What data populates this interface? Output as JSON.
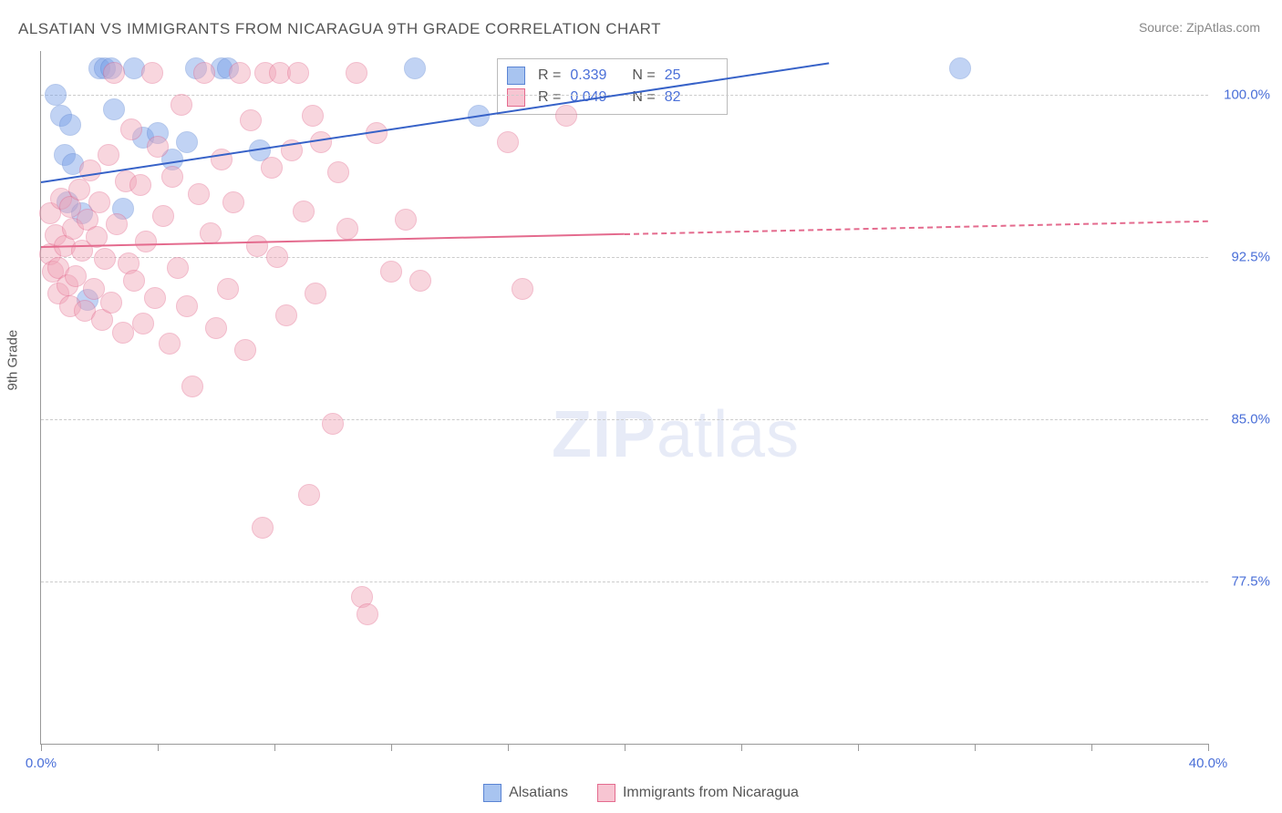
{
  "title": "ALSATIAN VS IMMIGRANTS FROM NICARAGUA 9TH GRADE CORRELATION CHART",
  "source_prefix": "Source: ",
  "source_name": "ZipAtlas.com",
  "yaxis_title": "9th Grade",
  "watermark_bold": "ZIP",
  "watermark_light": "atlas",
  "chart": {
    "type": "scatter",
    "xlim": [
      0,
      40
    ],
    "ylim": [
      70,
      102
    ],
    "xticks": [
      0,
      4,
      8,
      12,
      16,
      20,
      24,
      28,
      32,
      36,
      40
    ],
    "xlabels": {
      "0": "0.0%",
      "40": "40.0%"
    },
    "yticks": [
      77.5,
      85.0,
      92.5,
      100.0
    ],
    "ylabels": [
      "77.5%",
      "85.0%",
      "92.5%",
      "100.0%"
    ],
    "grid_color": "#cccccc",
    "axis_color": "#999999",
    "background": "#ffffff",
    "tick_label_color": "#4a6fd8",
    "title_color": "#555555",
    "marker_radius": 11,
    "marker_opacity": 0.45,
    "series": [
      {
        "name": "Alsatians",
        "color": "#78a0e8",
        "stroke": "#5a84d4",
        "R": "0.339",
        "N": "25",
        "regression": {
          "x1": 0,
          "y1": 96.0,
          "x2": 27,
          "y2": 101.5,
          "color": "#3762c8",
          "width": 2.5,
          "dash_from_x": null
        },
        "points": [
          [
            0.5,
            100.0
          ],
          [
            0.7,
            99.0
          ],
          [
            0.8,
            97.2
          ],
          [
            0.9,
            95.0
          ],
          [
            1.0,
            98.6
          ],
          [
            1.1,
            96.8
          ],
          [
            1.4,
            94.5
          ],
          [
            1.6,
            90.5
          ],
          [
            2.0,
            101.2
          ],
          [
            2.2,
            101.2
          ],
          [
            2.4,
            101.2
          ],
          [
            2.5,
            99.3
          ],
          [
            2.8,
            94.7
          ],
          [
            3.2,
            101.2
          ],
          [
            3.5,
            98.0
          ],
          [
            4.0,
            98.2
          ],
          [
            4.5,
            97.0
          ],
          [
            5.0,
            97.8
          ],
          [
            5.3,
            101.2
          ],
          [
            6.2,
            101.2
          ],
          [
            6.4,
            101.2
          ],
          [
            7.5,
            97.4
          ],
          [
            12.8,
            101.2
          ],
          [
            15.0,
            99.0
          ],
          [
            31.5,
            101.2
          ]
        ]
      },
      {
        "name": "Immigrants from Nicaragua",
        "color": "#f0a5b8",
        "stroke": "#e46b8e",
        "R": "0.049",
        "N": "82",
        "regression": {
          "x1": 0,
          "y1": 93.0,
          "x2": 40,
          "y2": 94.2,
          "color": "#e46b8e",
          "width": 2,
          "dash_from_x": 20
        },
        "points": [
          [
            0.3,
            94.5
          ],
          [
            0.3,
            92.6
          ],
          [
            0.4,
            91.8
          ],
          [
            0.5,
            93.5
          ],
          [
            0.6,
            90.8
          ],
          [
            0.6,
            92.0
          ],
          [
            0.7,
            95.2
          ],
          [
            0.8,
            93.0
          ],
          [
            0.9,
            91.2
          ],
          [
            1.0,
            94.8
          ],
          [
            1.0,
            90.2
          ],
          [
            1.1,
            93.8
          ],
          [
            1.2,
            91.6
          ],
          [
            1.3,
            95.6
          ],
          [
            1.4,
            92.8
          ],
          [
            1.5,
            90.0
          ],
          [
            1.6,
            94.2
          ],
          [
            1.7,
            96.5
          ],
          [
            1.8,
            91.0
          ],
          [
            1.9,
            93.4
          ],
          [
            2.0,
            95.0
          ],
          [
            2.1,
            89.6
          ],
          [
            2.2,
            92.4
          ],
          [
            2.3,
            97.2
          ],
          [
            2.4,
            90.4
          ],
          [
            2.5,
            101.0
          ],
          [
            2.6,
            94.0
          ],
          [
            2.8,
            89.0
          ],
          [
            2.9,
            96.0
          ],
          [
            3.0,
            92.2
          ],
          [
            3.1,
            98.4
          ],
          [
            3.2,
            91.4
          ],
          [
            3.4,
            95.8
          ],
          [
            3.5,
            89.4
          ],
          [
            3.6,
            93.2
          ],
          [
            3.8,
            101.0
          ],
          [
            3.9,
            90.6
          ],
          [
            4.0,
            97.6
          ],
          [
            4.2,
            94.4
          ],
          [
            4.4,
            88.5
          ],
          [
            4.5,
            96.2
          ],
          [
            4.7,
            92.0
          ],
          [
            4.8,
            99.5
          ],
          [
            5.0,
            90.2
          ],
          [
            5.2,
            86.5
          ],
          [
            5.4,
            95.4
          ],
          [
            5.6,
            101.0
          ],
          [
            5.8,
            93.6
          ],
          [
            6.0,
            89.2
          ],
          [
            6.2,
            97.0
          ],
          [
            6.4,
            91.0
          ],
          [
            6.6,
            95.0
          ],
          [
            6.8,
            101.0
          ],
          [
            7.0,
            88.2
          ],
          [
            7.2,
            98.8
          ],
          [
            7.4,
            93.0
          ],
          [
            7.6,
            80.0
          ],
          [
            7.7,
            101.0
          ],
          [
            7.9,
            96.6
          ],
          [
            8.1,
            92.5
          ],
          [
            8.2,
            101.0
          ],
          [
            8.4,
            89.8
          ],
          [
            8.6,
            97.4
          ],
          [
            8.8,
            101.0
          ],
          [
            9.0,
            94.6
          ],
          [
            9.2,
            81.5
          ],
          [
            9.3,
            99.0
          ],
          [
            9.4,
            90.8
          ],
          [
            9.6,
            97.8
          ],
          [
            10.0,
            84.8
          ],
          [
            10.2,
            96.4
          ],
          [
            10.5,
            93.8
          ],
          [
            10.8,
            101.0
          ],
          [
            11.0,
            76.8
          ],
          [
            11.2,
            76.0
          ],
          [
            11.5,
            98.2
          ],
          [
            12.0,
            91.8
          ],
          [
            12.5,
            94.2
          ],
          [
            13.0,
            91.4
          ],
          [
            16.0,
            97.8
          ],
          [
            16.5,
            91.0
          ],
          [
            18.0,
            99.0
          ]
        ]
      }
    ]
  },
  "stats_box": {
    "rows": [
      {
        "swatch_fill": "#a8c4f0",
        "swatch_border": "#5a84d4",
        "r_label": "R  =",
        "r_val": "0.339",
        "n_label": "N =",
        "n_val": "25"
      },
      {
        "swatch_fill": "#f7c5d2",
        "swatch_border": "#e46b8e",
        "r_label": "R  =",
        "r_val": "0.049",
        "n_label": "N =",
        "n_val": "82"
      }
    ]
  },
  "bottom_legend": [
    {
      "swatch_fill": "#a8c4f0",
      "swatch_border": "#5a84d4",
      "label": "Alsatians"
    },
    {
      "swatch_fill": "#f7c5d2",
      "swatch_border": "#e46b8e",
      "label": "Immigrants from Nicaragua"
    }
  ]
}
